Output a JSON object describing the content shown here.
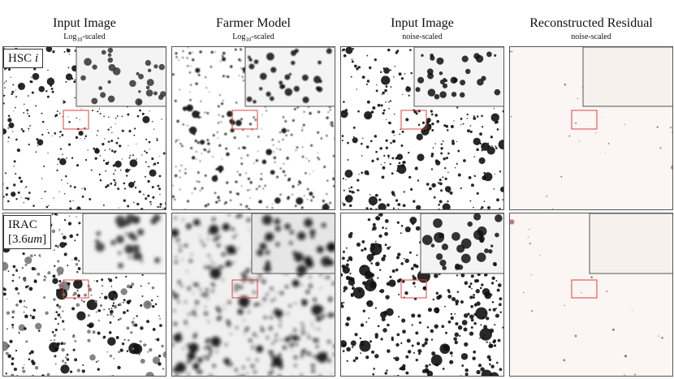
{
  "columns": [
    {
      "title": "Input Image",
      "subtitle": {
        "base": "Log",
        "sub": "10",
        "rest": "-scaled"
      }
    },
    {
      "title": "Farmer Model",
      "subtitle": {
        "base": "Log",
        "sub": "10",
        "rest": "-scaled"
      }
    },
    {
      "title": "Input Image",
      "subtitle": {
        "text": "noise-scaled"
      }
    },
    {
      "title": "Reconstructed Residual",
      "subtitle": {
        "text": "noise-scaled"
      }
    }
  ],
  "rows": [
    {
      "label": {
        "line1": "HSC",
        "italic": "i"
      }
    },
    {
      "label": {
        "line1": "IRAC",
        "start": "[3.6",
        "italic": "um",
        "end": "]"
      }
    }
  ]
}
